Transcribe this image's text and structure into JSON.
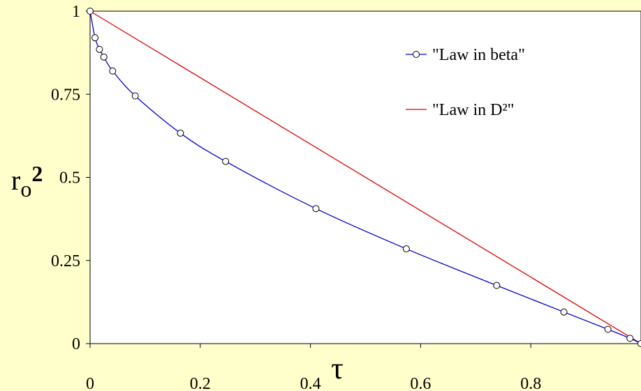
{
  "colors": {
    "page_background": "#ffffcc",
    "plot_background": "#ffffff",
    "beta_series": "#0000cc",
    "d2_series": "#dd0000"
  },
  "chart_data": {
    "type": "line",
    "title": "",
    "xlabel": "τ",
    "ylabel": "r",
    "ylabel_subscript": "o",
    "ylabel_superscript": "2",
    "xlim": [
      0,
      1
    ],
    "ylim": [
      0,
      1
    ],
    "x_ticks": [
      {
        "value": 0,
        "label": "0"
      },
      {
        "value": 0.2,
        "label": "0.2"
      },
      {
        "value": 0.4,
        "label": "0.4"
      },
      {
        "value": 0.6,
        "label": "0.6"
      },
      {
        "value": 0.8,
        "label": "0.8"
      }
    ],
    "y_ticks": [
      {
        "value": 0,
        "label": "0"
      },
      {
        "value": 0.25,
        "label": "0.25"
      },
      {
        "value": 0.5,
        "label": "0.5"
      },
      {
        "value": 0.75,
        "label": "0.75"
      },
      {
        "value": 1,
        "label": "1"
      }
    ],
    "grid": false,
    "legend_position": "top-right",
    "series": [
      {
        "name": "\"Law in beta\"",
        "marker": "circle",
        "x": [
          0,
          0.009,
          0.017,
          0.025,
          0.041,
          0.082,
          0.164,
          0.246,
          0.41,
          0.574,
          0.738,
          0.86,
          0.94,
          0.98,
          1.0
        ],
        "y": [
          1.0,
          0.92,
          0.885,
          0.862,
          0.82,
          0.745,
          0.633,
          0.548,
          0.406,
          0.285,
          0.175,
          0.095,
          0.043,
          0.016,
          0.0
        ]
      },
      {
        "name": "\"Law in D²\"",
        "marker": "none",
        "x": [
          0,
          1
        ],
        "y": [
          1,
          0
        ]
      }
    ]
  }
}
